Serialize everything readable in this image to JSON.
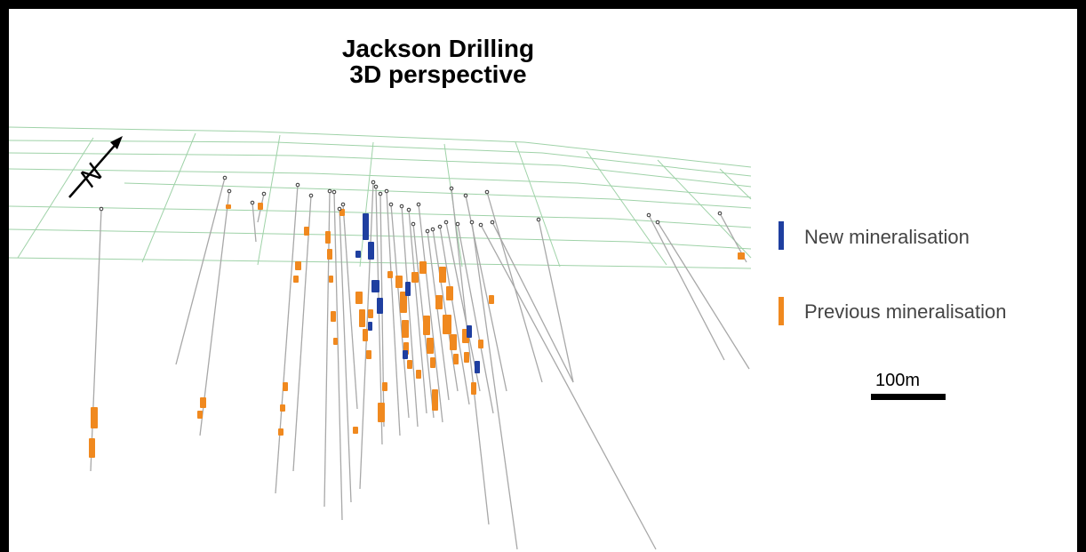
{
  "title": {
    "line1": "Jackson Drilling",
    "line2": "3D perspective"
  },
  "compass": {
    "label": "N"
  },
  "legend": {
    "items": [
      {
        "label": "New mineralisation",
        "color": "#1f3fa0"
      },
      {
        "label": "Previous mineralisation",
        "color": "#f0891f"
      }
    ]
  },
  "scale_bar": {
    "label": "100m"
  },
  "colors": {
    "grid": "#9fd2a8",
    "drillhole": "#a8a8a8",
    "collar": "#333333"
  }
}
